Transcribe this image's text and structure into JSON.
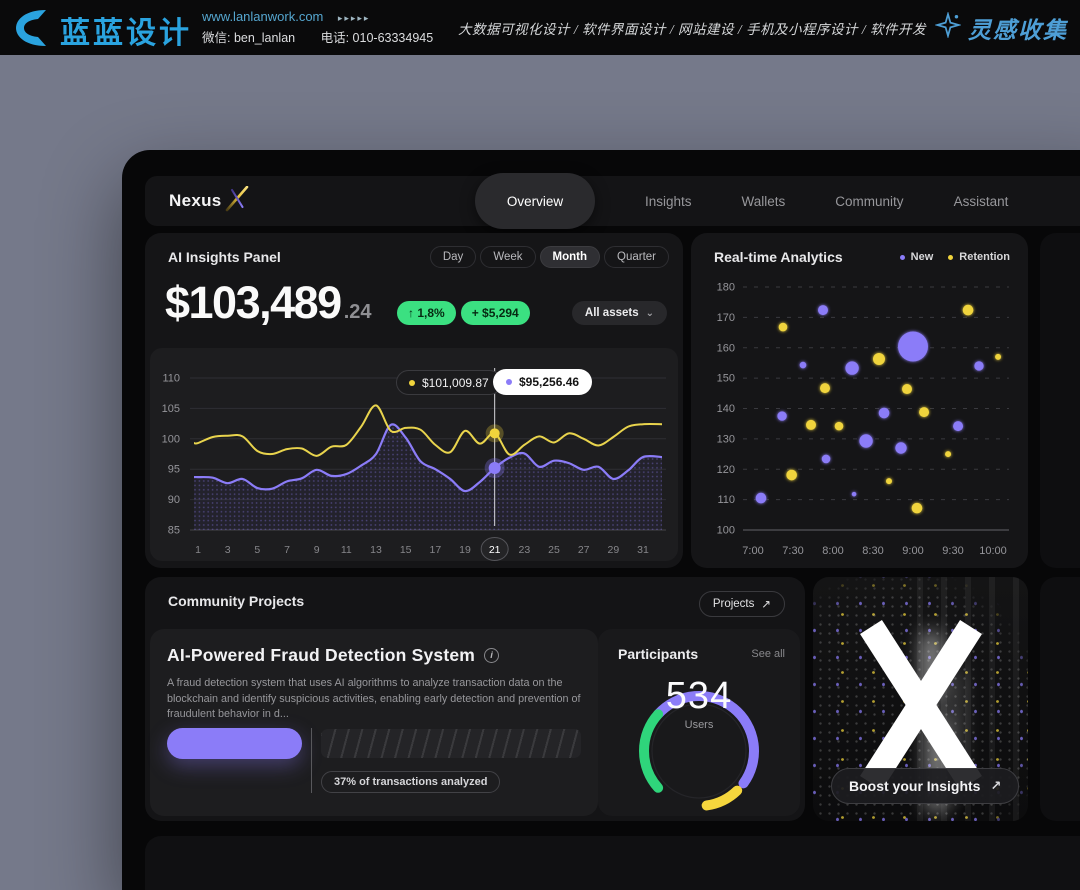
{
  "banner": {
    "brand": "蓝蓝设计",
    "url": "www.lanlanwork.com",
    "url_arrows": "▸▸▸▸▸",
    "wechat": "微信: ben_lanlan",
    "phone": "电话: 010-63334945",
    "services": [
      "大数据可视化设计",
      "软件界面设计",
      "网站建设",
      "手机及小程序设计",
      "软件开发"
    ],
    "collect": "灵感收集"
  },
  "nav": {
    "brand": "Nexus",
    "tabs": [
      {
        "label": "Overview",
        "active": true
      },
      {
        "label": "Insights",
        "active": false
      },
      {
        "label": "Wallets",
        "active": false
      },
      {
        "label": "Community",
        "active": false
      },
      {
        "label": "Assistant",
        "active": false
      }
    ]
  },
  "ai_panel": {
    "title": "AI Insights Panel",
    "ranges": [
      "Day",
      "Week",
      "Month",
      "Quarter"
    ],
    "active_range": "Month",
    "balance_main": "$103,489",
    "balance_decimal": ".24",
    "change_pct": "↑ 1,8%",
    "change_abs": "+ $5,294",
    "assets_dropdown": "All assets"
  },
  "analytics": {
    "title": "Real-time Analytics",
    "legend": [
      {
        "label": "New",
        "color": "#8b7cf8"
      },
      {
        "label": "Retention",
        "color": "#f0d43c"
      }
    ]
  },
  "community": {
    "title": "Community Projects",
    "projects_button": "Projects",
    "project": {
      "title": "AI-Powered Fraud Detection System",
      "description": "A fraud detection system that uses AI algorithms to analyze transaction data on the blockchain and identify suspicious activities, enabling early detection and prevention of fraudulent behavior in d...",
      "progress_pct": 37
    },
    "participants": {
      "title": "Participants",
      "see_all": "See all"
    }
  },
  "boost": {
    "label": "Boost your Insights",
    "arrow": "↗"
  },
  "icons": {
    "chevron_down": "⌄",
    "arrow_up_right": "↗",
    "info": "i"
  },
  "colors": {
    "purple": "#8b7cf8",
    "yellow": "#f0d43c",
    "green_badge": "#3be081",
    "gauge_green": "#2fd57b",
    "gauge_yellow": "#f5d63d",
    "brand_blue": "#2aa3df"
  },
  "chart_data": [
    {
      "type": "line",
      "title": "AI Insights Panel — Month",
      "x_range": [
        1,
        31
      ],
      "ylim": [
        85,
        110
      ],
      "yticks": [
        110,
        105,
        100,
        95,
        90,
        85
      ],
      "xticks": [
        "1",
        "3",
        "5",
        "7",
        "9",
        "11",
        "13",
        "15",
        "17",
        "19",
        "21",
        "23",
        "25",
        "27",
        "29",
        "31"
      ],
      "selected_x": "21",
      "series": [
        {
          "name": "Retention",
          "color": "#e9d44d",
          "values": [
            99.3,
            100.3,
            100.5,
            100.4,
            98.0,
            97.5,
            98.3,
            98.4,
            97.2,
            98.7,
            99.0,
            102.0,
            105.5,
            101.3,
            101.8,
            101.5,
            99.0,
            97.8,
            101.3,
            99.2,
            100.9,
            97.4,
            99.0,
            100.4,
            99.4,
            100.9,
            100.0,
            98.9,
            100.3,
            102.0,
            102.4
          ]
        },
        {
          "name": "New",
          "color": "#8b7cf8",
          "area": true,
          "values": [
            93.7,
            93.6,
            92.7,
            93.4,
            91.9,
            91.8,
            93.0,
            93.5,
            94.9,
            93.9,
            94.2,
            95.6,
            97.5,
            102.3,
            100.2,
            96.3,
            95.0,
            93.4,
            91.4,
            92.9,
            95.2,
            96.9,
            97.6,
            95.4,
            96.4,
            96.0,
            94.9,
            95.4,
            93.4,
            94.8,
            97.0
          ]
        }
      ],
      "marker": {
        "day": 21,
        "retention_value": 100.9,
        "retention_label": "$101,009.87",
        "new_value": 95.2,
        "new_label": "$95,256.46"
      }
    },
    {
      "type": "scatter",
      "title": "Real-time Analytics",
      "ylim": [
        100,
        180
      ],
      "yticks": [
        180,
        170,
        160,
        150,
        140,
        130,
        120,
        110,
        100
      ],
      "xticks": [
        "7:00",
        "7:30",
        "8:00",
        "8:30",
        "9:00",
        "9:30",
        "10:00"
      ],
      "points": [
        {
          "t": 6,
          "v": 110.5,
          "r": 5.3,
          "s": "New"
        },
        {
          "t": 21.8,
          "v": 137.5,
          "r": 4.7,
          "s": "New"
        },
        {
          "t": 37.5,
          "v": 154.3,
          "r": 3.3,
          "s": "New"
        },
        {
          "t": 52.5,
          "v": 172.4,
          "r": 5.0,
          "s": "New"
        },
        {
          "t": 54.8,
          "v": 123.4,
          "r": 4.3,
          "s": "New"
        },
        {
          "t": 74.3,
          "v": 153.3,
          "r": 6.7,
          "s": "New"
        },
        {
          "t": 75.8,
          "v": 111.8,
          "r": 2.3,
          "s": "New"
        },
        {
          "t": 84.8,
          "v": 129.3,
          "r": 6.7,
          "s": "New"
        },
        {
          "t": 98.3,
          "v": 138.5,
          "r": 5.3,
          "s": "New"
        },
        {
          "t": 111,
          "v": 127.0,
          "r": 5.7,
          "s": "New"
        },
        {
          "t": 120,
          "v": 160.4,
          "r": 15,
          "s": "New"
        },
        {
          "t": 153.8,
          "v": 134.2,
          "r": 5.0,
          "s": "New"
        },
        {
          "t": 169.5,
          "v": 154.0,
          "r": 4.7,
          "s": "New"
        },
        {
          "t": 22.5,
          "v": 166.8,
          "r": 4.3,
          "s": "Retention"
        },
        {
          "t": 29,
          "v": 118.1,
          "r": 5.3,
          "s": "Retention"
        },
        {
          "t": 43.5,
          "v": 134.6,
          "r": 5.0,
          "s": "Retention"
        },
        {
          "t": 54,
          "v": 146.7,
          "r": 5.0,
          "s": "Retention"
        },
        {
          "t": 64.5,
          "v": 134.2,
          "r": 4.3,
          "s": "Retention"
        },
        {
          "t": 94.5,
          "v": 156.3,
          "r": 6.0,
          "s": "Retention"
        },
        {
          "t": 102,
          "v": 116.1,
          "r": 3.0,
          "s": "Retention"
        },
        {
          "t": 115.5,
          "v": 146.4,
          "r": 5.0,
          "s": "Retention"
        },
        {
          "t": 123,
          "v": 107.2,
          "r": 5.3,
          "s": "Retention"
        },
        {
          "t": 128.3,
          "v": 138.8,
          "r": 5.0,
          "s": "Retention"
        },
        {
          "t": 146.3,
          "v": 125.0,
          "r": 3.0,
          "s": "Retention"
        },
        {
          "t": 161.3,
          "v": 172.4,
          "r": 5.3,
          "s": "Retention"
        },
        {
          "t": 183.8,
          "v": 157.0,
          "r": 3.0,
          "s": "Retention"
        }
      ]
    },
    {
      "type": "gauge",
      "title": "Participants",
      "value": 534,
      "unit": "Users",
      "arcs": [
        {
          "from": -48,
          "to": 126,
          "color": "#8b7cf8"
        },
        {
          "from": 136,
          "to": 172,
          "color": "#f5d63d"
        },
        {
          "from": 228,
          "to": 312,
          "color": "#2fd57b"
        }
      ]
    },
    {
      "type": "progress",
      "percent": 37,
      "label": "37% of transactions analyzed"
    }
  ]
}
